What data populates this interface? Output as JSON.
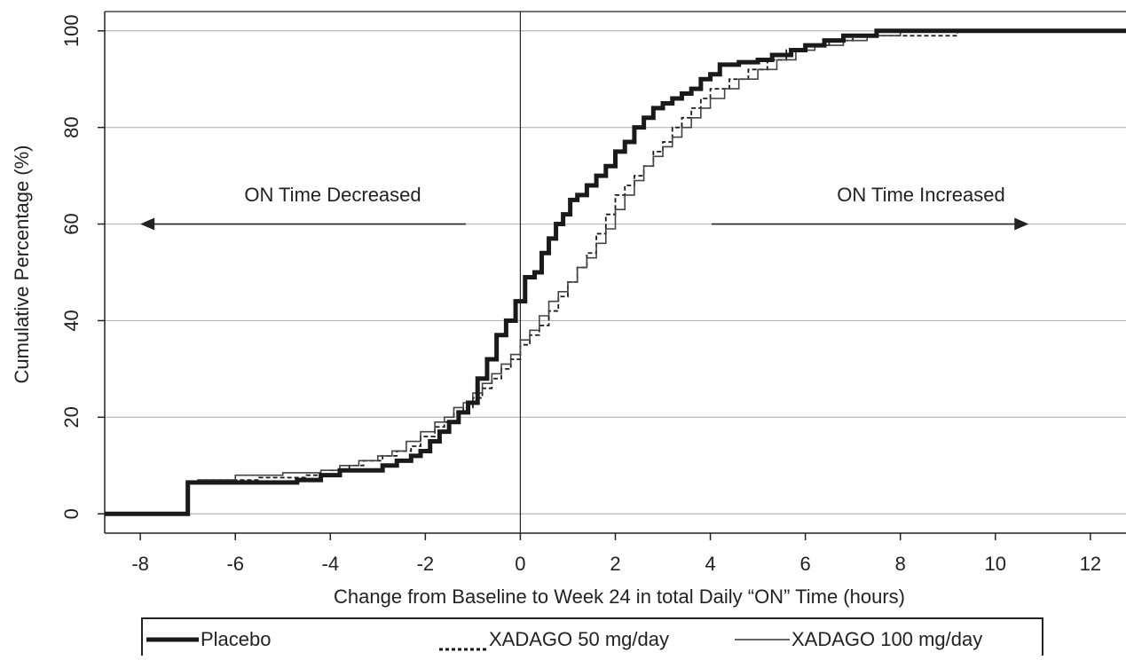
{
  "chart_data": {
    "type": "line",
    "step": true,
    "xlabel": "Change from Baseline to Week 24 in total Daily “ON” Time (hours)",
    "ylabel": "Cumulative Percentage (%)",
    "xlim": [
      -8.75,
      12.75
    ],
    "ylim": [
      -4,
      104
    ],
    "xticks": [
      -8,
      -6,
      -4,
      -2,
      0,
      2,
      4,
      6,
      8,
      10,
      12
    ],
    "yticks": [
      0,
      20,
      40,
      60,
      80,
      100
    ],
    "xtick_labels": [
      "-8",
      "-6",
      "-4",
      "-2",
      "0",
      "2",
      "4",
      "6",
      "8",
      "10",
      "12"
    ],
    "ytick_labels": [
      "0",
      "20",
      "40",
      "60",
      "80",
      "100"
    ],
    "grid": "horizontal",
    "reference_line_x": 0,
    "annotations": [
      {
        "text": "ON Time Decreased",
        "direction": "left",
        "x": -8,
        "y": 60
      },
      {
        "text": "ON Time Increased",
        "direction": "right",
        "x": 10.7,
        "y": 60
      }
    ],
    "legend": {
      "placement": "bottom"
    },
    "series": [
      {
        "name": "Placebo",
        "style": "thick-solid",
        "points": [
          [
            -8.75,
            0
          ],
          [
            -7,
            0
          ],
          [
            -7,
            6.5
          ],
          [
            -5,
            6.5
          ],
          [
            -4.7,
            7
          ],
          [
            -4.2,
            8
          ],
          [
            -3.8,
            9
          ],
          [
            -3,
            9
          ],
          [
            -2.9,
            10
          ],
          [
            -2.6,
            11
          ],
          [
            -2.3,
            12
          ],
          [
            -2.1,
            13
          ],
          [
            -1.9,
            15
          ],
          [
            -1.7,
            17
          ],
          [
            -1.5,
            19
          ],
          [
            -1.3,
            21
          ],
          [
            -1.1,
            23
          ],
          [
            -0.9,
            28
          ],
          [
            -0.7,
            32
          ],
          [
            -0.5,
            37
          ],
          [
            -0.3,
            40
          ],
          [
            -0.1,
            44
          ],
          [
            0.1,
            49
          ],
          [
            0.3,
            50
          ],
          [
            0.45,
            54
          ],
          [
            0.6,
            57
          ],
          [
            0.75,
            60
          ],
          [
            0.9,
            62
          ],
          [
            1.05,
            65
          ],
          [
            1.2,
            66
          ],
          [
            1.4,
            68
          ],
          [
            1.6,
            70
          ],
          [
            1.8,
            72
          ],
          [
            2.0,
            75
          ],
          [
            2.2,
            77
          ],
          [
            2.4,
            80
          ],
          [
            2.6,
            82
          ],
          [
            2.8,
            84
          ],
          [
            3.0,
            85
          ],
          [
            3.2,
            86
          ],
          [
            3.4,
            87
          ],
          [
            3.6,
            88
          ],
          [
            3.8,
            90
          ],
          [
            4.0,
            91
          ],
          [
            4.2,
            93
          ],
          [
            4.6,
            93.5
          ],
          [
            5.0,
            94
          ],
          [
            5.3,
            95
          ],
          [
            5.7,
            96
          ],
          [
            6.0,
            97
          ],
          [
            6.4,
            98
          ],
          [
            6.8,
            99
          ],
          [
            7.5,
            100
          ],
          [
            12.75,
            100
          ]
        ]
      },
      {
        "name": "XADAGO 50 mg/day",
        "style": "thin-dashed",
        "points": [
          [
            -6.8,
            7
          ],
          [
            -5.5,
            7.5
          ],
          [
            -4.5,
            8
          ],
          [
            -4,
            9
          ],
          [
            -3.6,
            10
          ],
          [
            -3.3,
            11
          ],
          [
            -2.9,
            12
          ],
          [
            -2.6,
            13
          ],
          [
            -2.3,
            14
          ],
          [
            -2.1,
            16
          ],
          [
            -1.8,
            18
          ],
          [
            -1.6,
            19
          ],
          [
            -1.4,
            21
          ],
          [
            -1.2,
            22
          ],
          [
            -1.0,
            24
          ],
          [
            -0.8,
            26
          ],
          [
            -0.6,
            28
          ],
          [
            -0.4,
            30
          ],
          [
            -0.2,
            32
          ],
          [
            0,
            35
          ],
          [
            0.2,
            37
          ],
          [
            0.4,
            39
          ],
          [
            0.6,
            42
          ],
          [
            0.8,
            45
          ],
          [
            1.0,
            48
          ],
          [
            1.2,
            51
          ],
          [
            1.4,
            54
          ],
          [
            1.6,
            58
          ],
          [
            1.8,
            62
          ],
          [
            2.0,
            66
          ],
          [
            2.2,
            68
          ],
          [
            2.4,
            70
          ],
          [
            2.6,
            72
          ],
          [
            2.8,
            75
          ],
          [
            3.0,
            77
          ],
          [
            3.2,
            80
          ],
          [
            3.4,
            82
          ],
          [
            3.6,
            84
          ],
          [
            3.8,
            86
          ],
          [
            4.0,
            88
          ],
          [
            4.4,
            90
          ],
          [
            4.8,
            92
          ],
          [
            5.2,
            94
          ],
          [
            5.6,
            96
          ],
          [
            6.0,
            97
          ],
          [
            6.5,
            98
          ],
          [
            7.0,
            99
          ],
          [
            9.2,
            100
          ],
          [
            12.75,
            100
          ]
        ]
      },
      {
        "name": "XADAGO 100 mg/day",
        "style": "thin-solid",
        "points": [
          [
            -6.8,
            7
          ],
          [
            -6.0,
            8
          ],
          [
            -5.0,
            8.5
          ],
          [
            -4.2,
            9
          ],
          [
            -3.8,
            10
          ],
          [
            -3.4,
            11
          ],
          [
            -3.0,
            12
          ],
          [
            -2.7,
            13
          ],
          [
            -2.4,
            15
          ],
          [
            -2.1,
            17
          ],
          [
            -1.8,
            19
          ],
          [
            -1.6,
            20
          ],
          [
            -1.4,
            22
          ],
          [
            -1.2,
            23
          ],
          [
            -1.0,
            25
          ],
          [
            -0.8,
            27
          ],
          [
            -0.6,
            29
          ],
          [
            -0.4,
            31
          ],
          [
            -0.2,
            33
          ],
          [
            0,
            36
          ],
          [
            0.2,
            38
          ],
          [
            0.4,
            41
          ],
          [
            0.6,
            44
          ],
          [
            0.8,
            46
          ],
          [
            1.0,
            48
          ],
          [
            1.2,
            51
          ],
          [
            1.4,
            53
          ],
          [
            1.6,
            56
          ],
          [
            1.8,
            59
          ],
          [
            2.0,
            63
          ],
          [
            2.2,
            66
          ],
          [
            2.4,
            69
          ],
          [
            2.6,
            72
          ],
          [
            2.8,
            74
          ],
          [
            3.0,
            76
          ],
          [
            3.2,
            78
          ],
          [
            3.4,
            80
          ],
          [
            3.6,
            82
          ],
          [
            3.8,
            84
          ],
          [
            4.0,
            86
          ],
          [
            4.3,
            88
          ],
          [
            4.6,
            90
          ],
          [
            5.0,
            92
          ],
          [
            5.4,
            94
          ],
          [
            5.8,
            96
          ],
          [
            6.2,
            97
          ],
          [
            6.8,
            98
          ],
          [
            7.3,
            99
          ],
          [
            8.0,
            100
          ],
          [
            12.75,
            100
          ]
        ]
      }
    ]
  }
}
